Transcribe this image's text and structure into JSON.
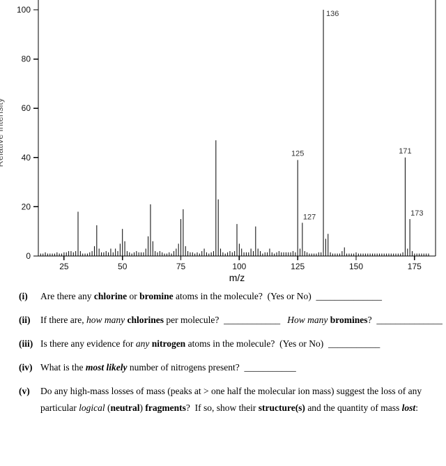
{
  "chart_data": {
    "type": "bar",
    "title": "",
    "xlabel": "m/z",
    "ylabel": "Relative Intensity",
    "xlim": [
      14,
      184
    ],
    "ylim": [
      0,
      100
    ],
    "x_ticks": [
      25,
      50,
      75,
      100,
      125,
      150,
      175
    ],
    "y_ticks": [
      0,
      20,
      40,
      60,
      80,
      100
    ],
    "grid": false,
    "legend": "none",
    "peaks": [
      [
        15,
        1
      ],
      [
        16,
        1
      ],
      [
        17,
        1.5
      ],
      [
        18,
        1
      ],
      [
        19,
        1
      ],
      [
        20,
        1
      ],
      [
        21,
        1
      ],
      [
        22,
        1.5
      ],
      [
        23,
        1
      ],
      [
        24,
        1
      ],
      [
        25,
        1.5
      ],
      [
        26,
        1.5
      ],
      [
        27,
        2
      ],
      [
        28,
        2
      ],
      [
        29,
        1.5
      ],
      [
        30,
        2
      ],
      [
        31,
        18
      ],
      [
        32,
        2
      ],
      [
        33,
        1
      ],
      [
        34,
        1
      ],
      [
        35,
        1
      ],
      [
        36,
        1.5
      ],
      [
        37,
        2
      ],
      [
        38,
        4
      ],
      [
        39,
        12.5
      ],
      [
        40,
        3
      ],
      [
        41,
        1.5
      ],
      [
        42,
        1.5
      ],
      [
        43,
        2
      ],
      [
        44,
        1.5
      ],
      [
        45,
        3
      ],
      [
        46,
        1.5
      ],
      [
        47,
        3
      ],
      [
        48,
        2
      ],
      [
        49,
        5
      ],
      [
        50,
        11
      ],
      [
        51,
        6
      ],
      [
        52,
        2
      ],
      [
        53,
        1.5
      ],
      [
        54,
        1
      ],
      [
        55,
        1.5
      ],
      [
        56,
        2
      ],
      [
        57,
        1.5
      ],
      [
        58,
        1.5
      ],
      [
        59,
        1.5
      ],
      [
        60,
        3
      ],
      [
        61,
        8
      ],
      [
        62,
        21
      ],
      [
        63,
        6
      ],
      [
        64,
        2
      ],
      [
        65,
        1.5
      ],
      [
        66,
        2
      ],
      [
        67,
        1.5
      ],
      [
        68,
        1
      ],
      [
        69,
        1
      ],
      [
        70,
        1.5
      ],
      [
        71,
        1
      ],
      [
        72,
        2
      ],
      [
        73,
        3
      ],
      [
        74,
        5
      ],
      [
        75,
        15
      ],
      [
        76,
        19
      ],
      [
        77,
        4
      ],
      [
        78,
        2
      ],
      [
        79,
        1.5
      ],
      [
        80,
        1.5
      ],
      [
        81,
        1
      ],
      [
        82,
        1.5
      ],
      [
        83,
        1
      ],
      [
        84,
        2
      ],
      [
        85,
        3
      ],
      [
        86,
        1.5
      ],
      [
        87,
        1
      ],
      [
        88,
        1.5
      ],
      [
        89,
        2
      ],
      [
        90,
        47
      ],
      [
        91,
        23
      ],
      [
        92,
        3
      ],
      [
        93,
        1.5
      ],
      [
        94,
        1
      ],
      [
        95,
        1.5
      ],
      [
        96,
        2
      ],
      [
        97,
        1.5
      ],
      [
        98,
        2
      ],
      [
        99,
        13
      ],
      [
        100,
        5
      ],
      [
        101,
        3
      ],
      [
        102,
        1.5
      ],
      [
        103,
        1.5
      ],
      [
        104,
        1.5
      ],
      [
        105,
        3
      ],
      [
        106,
        2
      ],
      [
        107,
        12
      ],
      [
        108,
        3
      ],
      [
        109,
        2
      ],
      [
        110,
        1
      ],
      [
        111,
        1.5
      ],
      [
        112,
        1.5
      ],
      [
        113,
        3
      ],
      [
        114,
        1.5
      ],
      [
        115,
        1
      ],
      [
        116,
        1.5
      ],
      [
        117,
        2
      ],
      [
        118,
        1.5
      ],
      [
        119,
        1.5
      ],
      [
        120,
        1.5
      ],
      [
        121,
        1.5
      ],
      [
        122,
        1.5
      ],
      [
        123,
        2
      ],
      [
        124,
        1.5
      ],
      [
        125,
        39
      ],
      [
        126,
        3
      ],
      [
        127,
        13.5
      ],
      [
        128,
        2
      ],
      [
        129,
        1.5
      ],
      [
        130,
        1
      ],
      [
        131,
        1
      ],
      [
        132,
        1
      ],
      [
        133,
        1
      ],
      [
        134,
        1.5
      ],
      [
        135,
        1.5
      ],
      [
        136,
        100
      ],
      [
        137,
        7
      ],
      [
        138,
        9
      ],
      [
        139,
        1.5
      ],
      [
        140,
        1
      ],
      [
        141,
        1
      ],
      [
        142,
        1
      ],
      [
        143,
        1
      ],
      [
        144,
        2
      ],
      [
        145,
        3.5
      ],
      [
        146,
        1
      ],
      [
        147,
        1
      ],
      [
        148,
        1
      ],
      [
        149,
        1
      ],
      [
        150,
        1.5
      ],
      [
        151,
        1
      ],
      [
        152,
        1
      ],
      [
        153,
        1
      ],
      [
        154,
        1
      ],
      [
        155,
        1
      ],
      [
        156,
        1
      ],
      [
        157,
        1
      ],
      [
        158,
        1
      ],
      [
        159,
        1
      ],
      [
        160,
        1
      ],
      [
        161,
        1
      ],
      [
        162,
        1
      ],
      [
        163,
        1
      ],
      [
        164,
        1
      ],
      [
        165,
        1
      ],
      [
        166,
        1
      ],
      [
        167,
        1
      ],
      [
        168,
        1
      ],
      [
        169,
        1
      ],
      [
        170,
        1.5
      ],
      [
        171,
        40
      ],
      [
        172,
        3
      ],
      [
        173,
        15
      ],
      [
        174,
        2
      ],
      [
        175,
        1
      ],
      [
        176,
        1
      ],
      [
        177,
        1
      ],
      [
        178,
        1
      ],
      [
        179,
        1
      ],
      [
        180,
        1
      ],
      [
        181,
        1
      ]
    ],
    "peak_labels": [
      {
        "text": "136",
        "mz": 136,
        "value": 100,
        "pos": "right"
      },
      {
        "text": "125",
        "mz": 125,
        "value": 39,
        "pos": "above"
      },
      {
        "text": "127",
        "mz": 127,
        "value": 13.5,
        "pos": "above-right"
      },
      {
        "text": "171",
        "mz": 171,
        "value": 40,
        "pos": "above"
      },
      {
        "text": "173",
        "mz": 173,
        "value": 15,
        "pos": "above-right"
      }
    ]
  },
  "questions": [
    {
      "id": "i",
      "number": "(i)",
      "wrap": false,
      "segments": [
        {
          "t": "Are there any "
        },
        {
          "t": "chlorine",
          "b": 1
        },
        {
          "t": " or "
        },
        {
          "t": "bromine",
          "b": 1
        },
        {
          "t": " atoms in the molecule?  (Yes or No)  "
        },
        {
          "t": "______________"
        }
      ]
    },
    {
      "id": "ii",
      "number": "(ii)",
      "wrap": false,
      "segments": [
        {
          "t": "If there are, "
        },
        {
          "t": "how many",
          "i": 1
        },
        {
          "t": " "
        },
        {
          "t": "chlorines",
          "b": 1
        },
        {
          "t": " per molecule?  "
        },
        {
          "t": "____________"
        },
        {
          "t": "   "
        },
        {
          "t": "How many",
          "i": 1
        },
        {
          "t": " "
        },
        {
          "t": "bromines",
          "b": 1
        },
        {
          "t": "?  "
        },
        {
          "t": "______________"
        }
      ]
    },
    {
      "id": "iii",
      "number": "(iii)",
      "wrap": false,
      "segments": [
        {
          "t": "Is there any evidence for "
        },
        {
          "t": "any",
          "i": 1
        },
        {
          "t": " "
        },
        {
          "t": "nitrogen",
          "b": 1
        },
        {
          "t": " atoms in the molecule?  (Yes or No)  "
        },
        {
          "t": "___________"
        }
      ]
    },
    {
      "id": "iv",
      "number": "(iv)",
      "wrap": false,
      "segments": [
        {
          "t": "What is the "
        },
        {
          "t": "most likely",
          "b": 1,
          "i": 1
        },
        {
          "t": " number of nitrogens present?  "
        },
        {
          "t": "___________"
        }
      ]
    },
    {
      "id": "v",
      "number": "(v)",
      "wrap": true,
      "segments": [
        {
          "t": "Do any high-mass losses of mass (peaks at > one half the molecular ion mass) suggest the loss of any particular "
        },
        {
          "t": "logical",
          "i": 1
        },
        {
          "t": " ("
        },
        {
          "t": "neutral",
          "b": 1
        },
        {
          "t": ") "
        },
        {
          "t": "fragments",
          "b": 1
        },
        {
          "t": "?  If so, show their "
        },
        {
          "t": "structure(s)",
          "b": 1
        },
        {
          "t": " and the quantity of mass "
        },
        {
          "t": "lost",
          "b": 1,
          "i": 1
        },
        {
          "t": ":"
        }
      ]
    }
  ]
}
